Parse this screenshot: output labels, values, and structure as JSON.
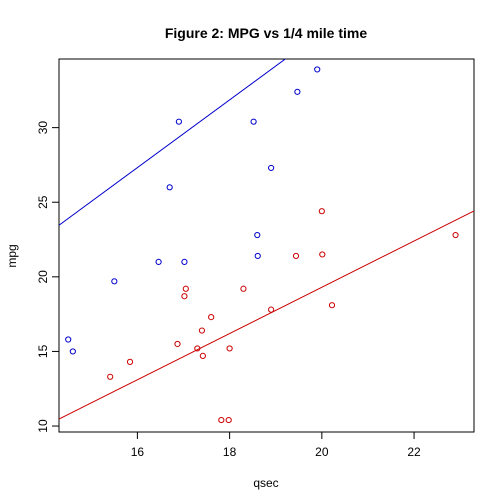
{
  "chart_data": {
    "type": "scatter",
    "title": "Figure 2: MPG vs 1/4 mile time",
    "xlabel": "qsec",
    "ylabel": "mpg",
    "xlim": [
      14.3,
      23.3
    ],
    "ylim": [
      9.6,
      34.6
    ],
    "x_ticks": [
      16,
      18,
      20,
      22
    ],
    "y_ticks": [
      10,
      15,
      20,
      25,
      30
    ],
    "grid": false,
    "legend": "none",
    "colors": {
      "blue": "#0000cc",
      "red": "#cc0000"
    },
    "series": [
      {
        "color": "blue",
        "points": [
          {
            "x": 14.5,
            "y": 15.8
          },
          {
            "x": 14.6,
            "y": 15.0
          },
          {
            "x": 15.5,
            "y": 19.7
          },
          {
            "x": 16.46,
            "y": 21.0
          },
          {
            "x": 16.7,
            "y": 26.0
          },
          {
            "x": 16.9,
            "y": 30.4
          },
          {
            "x": 17.02,
            "y": 21.0
          },
          {
            "x": 18.52,
            "y": 30.4
          },
          {
            "x": 18.6,
            "y": 22.8
          },
          {
            "x": 18.61,
            "y": 21.4
          },
          {
            "x": 18.9,
            "y": 27.3
          },
          {
            "x": 19.47,
            "y": 32.4
          },
          {
            "x": 19.9,
            "y": 33.9
          }
        ],
        "fit_line": {
          "intercept": -9.0,
          "slope": 2.27
        }
      },
      {
        "color": "red",
        "points": [
          {
            "x": 15.41,
            "y": 13.3
          },
          {
            "x": 15.84,
            "y": 14.3
          },
          {
            "x": 16.87,
            "y": 15.5
          },
          {
            "x": 17.02,
            "y": 18.7
          },
          {
            "x": 17.05,
            "y": 19.2
          },
          {
            "x": 17.3,
            "y": 15.2
          },
          {
            "x": 17.4,
            "y": 16.4
          },
          {
            "x": 17.42,
            "y": 14.7
          },
          {
            "x": 17.6,
            "y": 17.3
          },
          {
            "x": 17.82,
            "y": 10.4
          },
          {
            "x": 17.98,
            "y": 10.4
          },
          {
            "x": 18.0,
            "y": 15.2
          },
          {
            "x": 18.3,
            "y": 19.2
          },
          {
            "x": 18.9,
            "y": 17.8
          },
          {
            "x": 19.44,
            "y": 21.4
          },
          {
            "x": 20.0,
            "y": 24.4
          },
          {
            "x": 20.01,
            "y": 21.5
          },
          {
            "x": 20.22,
            "y": 18.1
          },
          {
            "x": 22.9,
            "y": 22.8
          }
        ],
        "fit_line": {
          "intercept": -11.7,
          "slope": 1.55
        }
      }
    ]
  }
}
